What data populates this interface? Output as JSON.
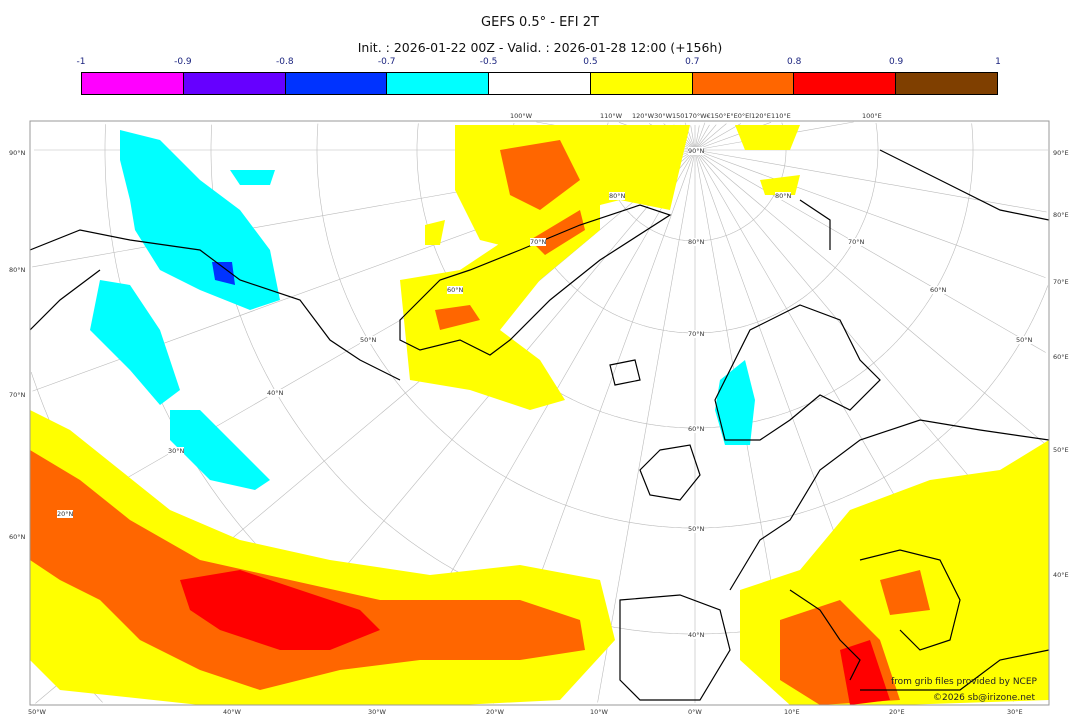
{
  "header": {
    "title": "GEFS 0.5° - EFI 2T",
    "subtitle": "Init. : 2026-01-22 00Z - Valid. : 2026-01-28 12:00 (+156h)"
  },
  "colorbar": {
    "ticks": [
      "-1",
      "-0.9",
      "-0.8",
      "-0.7",
      "-0.5",
      "0.5",
      "0.7",
      "0.8",
      "0.9",
      "1"
    ],
    "colors": [
      "#ff00ff",
      "#6600ff",
      "#0033ff",
      "#00ffff",
      "#ffffff",
      "#ffff00",
      "#ff6600",
      "#ff0000",
      "#7f3f00"
    ]
  },
  "axes": {
    "left": [
      "90°N",
      "80°N",
      "70°N",
      "60°N"
    ],
    "right": [
      "90°E",
      "80°E",
      "70°E",
      "60°E",
      "50°E",
      "40°E"
    ],
    "bottom": [
      "50°W",
      "40°W",
      "30°W",
      "20°W",
      "10°W",
      "0°W",
      "10°E",
      "20°E",
      "30°E"
    ],
    "top": [
      "100°W",
      "110°W",
      "120°W30°W150170°W€150°E°E0°El120°E",
      "110°E",
      "100°E"
    ],
    "inner": [
      "90°N",
      "80°N",
      "70°N",
      "60°N",
      "50°N",
      "40°N",
      "80°N",
      "70°N",
      "60°N",
      "50°N",
      "40°N",
      "30°N",
      "20°N",
      "80°N",
      "70°N",
      "60°N",
      "50°N"
    ]
  },
  "credits": {
    "line1": "from grib files provided by NCEP",
    "line2": "©2026 sb@irizone.net"
  }
}
